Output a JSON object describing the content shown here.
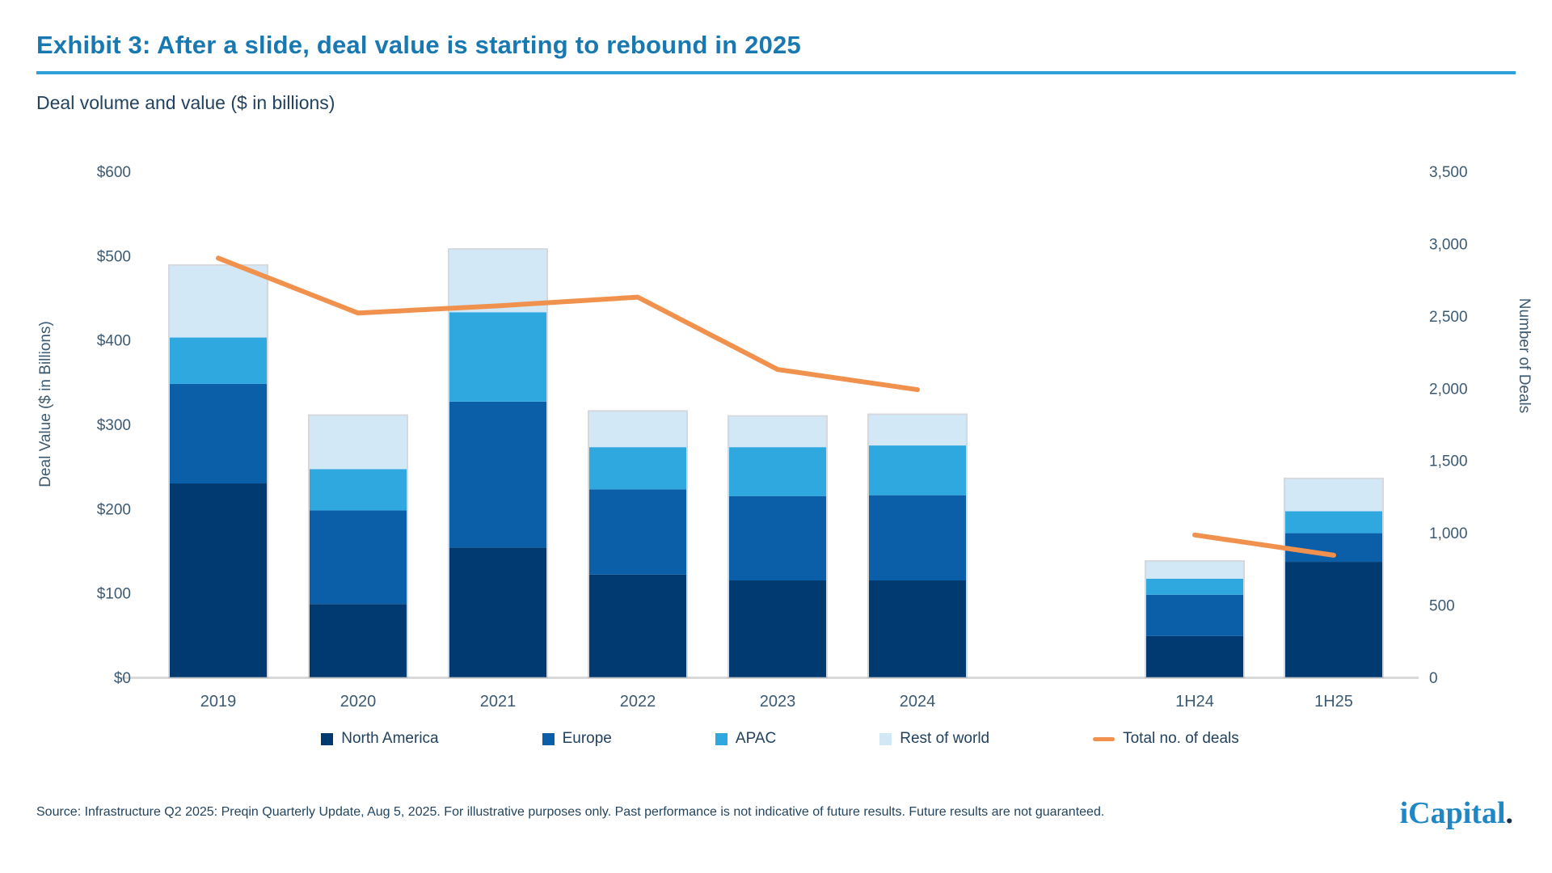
{
  "header": {
    "title": "Exhibit 3: After a slide, deal value is starting to rebound in 2025",
    "subtitle": "Deal volume and value ($ in billions)"
  },
  "chart_data": {
    "type": "bar",
    "subtype": "stacked-bars-with-line",
    "title": "Deal volume and value ($ in billions)",
    "categories": [
      "2019",
      "2020",
      "2021",
      "2022",
      "2023",
      "2024",
      "1H24",
      "1H25"
    ],
    "series": [
      {
        "name": "North America",
        "type": "bar",
        "color": "#003a70",
        "values": [
          230,
          87,
          154,
          122,
          115,
          115,
          49,
          137
        ]
      },
      {
        "name": "Europe",
        "type": "bar",
        "color": "#0b5ea8",
        "values": [
          118,
          111,
          173,
          101,
          100,
          101,
          49,
          34
        ]
      },
      {
        "name": "APAC",
        "type": "bar",
        "color": "#2fa8e0",
        "values": [
          55,
          49,
          106,
          50,
          58,
          59,
          19,
          26
        ]
      },
      {
        "name": "Rest of world",
        "type": "bar",
        "color": "#d2e8f7",
        "values": [
          85,
          63,
          74,
          42,
          36,
          36,
          20,
          38
        ]
      }
    ],
    "bar_totals": [
      488,
      310,
      507,
      315,
      309,
      311,
      137,
      235
    ],
    "line_series": {
      "name": "Total no. of deals",
      "type": "line",
      "axis": "right",
      "color": "#f0914e",
      "values": [
        2900,
        2520,
        2570,
        2630,
        2130,
        1990,
        985,
        845
      ],
      "segments": [
        [
          0,
          5
        ],
        [
          6,
          7
        ]
      ]
    },
    "left_axis": {
      "title": "Deal Value ($ in Billions)",
      "min": 0,
      "max": 600,
      "tick_step": 100,
      "ticks": [
        "$600",
        "$500",
        "$400",
        "$300",
        "$200",
        "$100",
        "$0"
      ]
    },
    "right_axis": {
      "title": "Number of Deals",
      "min": 0,
      "max": 3500,
      "tick_step": 500,
      "ticks": [
        "3,500",
        "3,000",
        "2,500",
        "2,000",
        "1,500",
        "1,000",
        "500",
        "0"
      ]
    },
    "grid": false,
    "legend_position": "bottom",
    "baseline_color": "#d9d9d9",
    "tick_label_color": "#3d5a73"
  },
  "legend": {
    "items": [
      {
        "label": "North America",
        "color": "#003a70",
        "swatch": "square"
      },
      {
        "label": "Europe",
        "color": "#0b5ea8",
        "swatch": "square"
      },
      {
        "label": "APAC",
        "color": "#2fa8e0",
        "swatch": "square"
      },
      {
        "label": "Rest of world",
        "color": "#d2e8f7",
        "swatch": "square"
      },
      {
        "label": "Total no. of deals",
        "color": "#f0914e",
        "swatch": "line"
      }
    ]
  },
  "footer": {
    "source": "Source: Infrastructure Q2 2025: Preqin Quarterly Update, Aug 5, 2025. For illustrative purposes only. Past performance is not indicative of future results. Future results are not guaranteed.",
    "logo_text": "iCapital",
    "logo_suffix": "."
  }
}
